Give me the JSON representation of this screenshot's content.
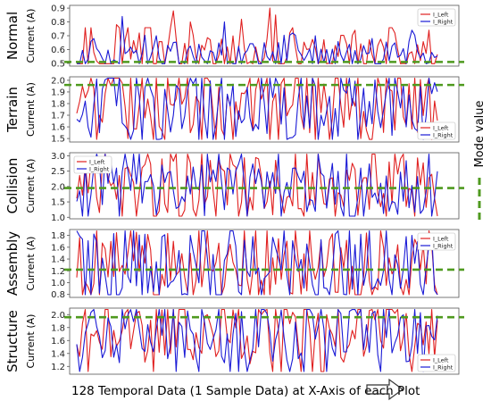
{
  "caption": "128 Temporal Data (1 Sample Data) at X-Axis of each Plot",
  "mode_legend": "Mode value",
  "colors": {
    "left": "#e02020",
    "right": "#1a1ad6",
    "mode": "#4f9a1f",
    "axis": "#555555"
  },
  "chart_data": [
    {
      "type": "line",
      "title": "Normal",
      "ylabel": "Current (A)",
      "ylim": [
        0.48,
        0.92
      ],
      "yticks": [
        0.5,
        0.6,
        0.7,
        0.8,
        0.9
      ],
      "tick_decimals": 1,
      "mode_value": 0.51,
      "legend": "top-right",
      "series": [
        {
          "name": "I_Left",
          "base": 0.56,
          "amp": 0.09,
          "spikes": [
            [
              14,
              0.78
            ],
            [
              22,
              0.72
            ],
            [
              34,
              0.88
            ],
            [
              40,
              0.8
            ],
            [
              58,
              0.82
            ],
            [
              68,
              0.9
            ],
            [
              70,
              0.85
            ],
            [
              75,
              0.72
            ],
            [
              98,
              0.74
            ],
            [
              112,
              0.72
            ],
            [
              124,
              0.74
            ]
          ]
        },
        {
          "name": "I_Right",
          "base": 0.55,
          "amp": 0.07,
          "spikes": [
            [
              6,
              0.68
            ],
            [
              16,
              0.84
            ],
            [
              28,
              0.7
            ],
            [
              52,
              0.8
            ],
            [
              76,
              0.72
            ],
            [
              84,
              0.7
            ],
            [
              104,
              0.68
            ],
            [
              118,
              0.74
            ]
          ]
        }
      ]
    },
    {
      "type": "line",
      "title": "Terrain",
      "ylabel": "Current (A)",
      "ylim": [
        1.47,
        2.03
      ],
      "yticks": [
        1.5,
        1.6,
        1.7,
        1.8,
        1.9,
        2.0
      ],
      "tick_decimals": 1,
      "mode_value": 1.96,
      "legend": "bottom-right",
      "series": [
        {
          "name": "I_Left",
          "base": 1.84,
          "amp": 0.18,
          "spikes": [
            [
              18,
              1.5
            ],
            [
              40,
              1.55
            ],
            [
              52,
              1.52
            ],
            [
              82,
              1.55
            ],
            [
              100,
              1.5
            ]
          ]
        },
        {
          "name": "I_Right",
          "base": 1.8,
          "amp": 0.2,
          "spikes": [
            [
              8,
              1.55
            ],
            [
              30,
              1.5
            ],
            [
              64,
              1.58
            ],
            [
              92,
              1.52
            ],
            [
              116,
              1.6
            ]
          ]
        }
      ]
    },
    {
      "type": "line",
      "title": "Collision",
      "ylabel": "Current (A)",
      "ylim": [
        0.95,
        3.1
      ],
      "yticks": [
        1.0,
        1.5,
        2.0,
        2.5,
        3.0
      ],
      "tick_decimals": 1,
      "mode_value": 1.95,
      "legend": "top-left",
      "series": [
        {
          "name": "I_Left",
          "base": 2.0,
          "amp": 0.6,
          "spikes": [
            [
              30,
              2.9
            ],
            [
              50,
              2.85
            ],
            [
              64,
              2.9
            ],
            [
              70,
              2.85
            ],
            [
              110,
              2.8
            ],
            [
              114,
              2.9
            ]
          ]
        },
        {
          "name": "I_Right",
          "base": 1.9,
          "amp": 0.6,
          "spikes": [
            [
              14,
              2.6
            ],
            [
              44,
              2.7
            ],
            [
              80,
              2.5
            ],
            [
              100,
              2.6
            ]
          ]
        }
      ]
    },
    {
      "type": "line",
      "title": "Assembly",
      "ylabel": "Current (A)",
      "ylim": [
        0.75,
        1.9
      ],
      "yticks": [
        0.8,
        1.0,
        1.2,
        1.4,
        1.6,
        1.8
      ],
      "tick_decimals": 1,
      "mode_value": 1.22,
      "legend": "top-right",
      "series": [
        {
          "name": "I_Left",
          "base": 1.3,
          "amp": 0.35,
          "spikes": [
            [
              34,
              1.7
            ],
            [
              54,
              1.65
            ],
            [
              86,
              1.7
            ],
            [
              108,
              1.6
            ],
            [
              120,
              1.62
            ]
          ]
        },
        {
          "name": "I_Right",
          "base": 1.2,
          "amp": 0.4,
          "spikes": [
            [
              24,
              1.82
            ],
            [
              40,
              1.8
            ],
            [
              62,
              1.78
            ],
            [
              100,
              1.82
            ],
            [
              118,
              1.8
            ]
          ]
        }
      ]
    },
    {
      "type": "line",
      "title": "Structure",
      "ylabel": "Current (A)",
      "ylim": [
        1.08,
        2.1
      ],
      "yticks": [
        1.2,
        1.4,
        1.6,
        1.8,
        2.0
      ],
      "tick_decimals": 1,
      "mode_value": 1.96,
      "legend": "bottom-right",
      "series": [
        {
          "name": "I_Left",
          "base": 1.7,
          "amp": 0.3,
          "spikes": [
            [
              22,
              2.05
            ],
            [
              46,
              2.0
            ],
            [
              72,
              1.1
            ],
            [
              88,
              2.0
            ],
            [
              112,
              2.02
            ]
          ]
        },
        {
          "name": "I_Right",
          "base": 1.7,
          "amp": 0.28,
          "spikes": [
            [
              18,
              2.0
            ],
            [
              56,
              2.02
            ],
            [
              74,
              1.3
            ],
            [
              96,
              2.05
            ],
            [
              120,
              1.4
            ]
          ]
        }
      ]
    }
  ]
}
